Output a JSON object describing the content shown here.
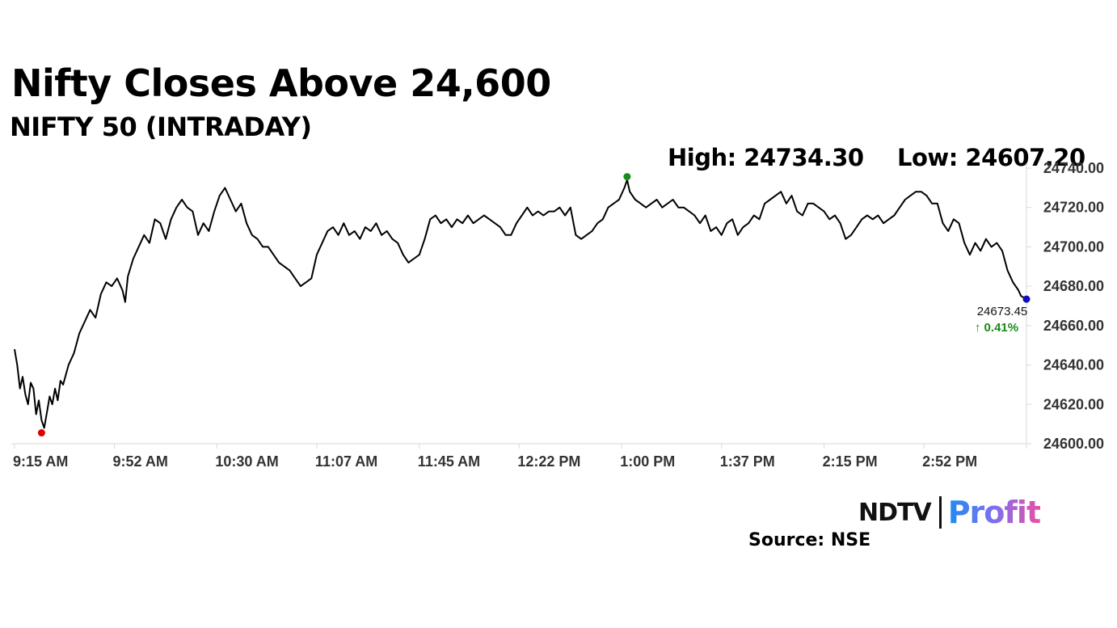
{
  "chart_data": {
    "type": "line",
    "title": "Nifty Closes Above 24,600",
    "subtitle": "NIFTY 50 (INTRADAY)",
    "high_label": "High: 24734.30",
    "low_label": "Low: 24607.20",
    "last_value_label": "24673.45",
    "change_label": "↑ 0.41%",
    "source": "Source: NSE",
    "brand": {
      "ndtv": "NDTV",
      "profit": "Profit"
    },
    "x_unit": "minutes after 9:15 AM",
    "x_tick_labels": [
      "9:15 AM",
      "9:52 AM",
      "10:30 AM",
      "11:07 AM",
      "11:45 AM",
      "12:22 PM",
      "1:00 PM",
      "1:37 PM",
      "2:15 PM",
      "2:52 PM"
    ],
    "x_tick_values": [
      0,
      37,
      75,
      112,
      150,
      187,
      225,
      262,
      300,
      337
    ],
    "xlim": [
      0,
      375
    ],
    "y_tick_labels": [
      "24740.00",
      "24720.00",
      "24700.00",
      "24680.00",
      "24660.00",
      "24640.00",
      "24620.00",
      "24600.00"
    ],
    "y_tick_values": [
      24740,
      24720,
      24700,
      24680,
      24660,
      24640,
      24620,
      24600
    ],
    "ylim": [
      24600,
      24740
    ],
    "grid": false,
    "series": [
      {
        "values_at": [
          [
            0,
            24648
          ],
          [
            1,
            24640
          ],
          [
            2,
            24628
          ],
          [
            3,
            24634
          ],
          [
            4,
            24625
          ],
          [
            5,
            24620
          ],
          [
            6,
            24631
          ],
          [
            7,
            24628
          ],
          [
            8,
            24615
          ],
          [
            9,
            24622
          ],
          [
            10,
            24612
          ],
          [
            11,
            24608
          ],
          [
            12,
            24616
          ],
          [
            13,
            24624
          ],
          [
            14,
            24620
          ],
          [
            15,
            24628
          ],
          [
            16,
            24622
          ],
          [
            17,
            24632
          ],
          [
            18,
            24630
          ],
          [
            20,
            24640
          ],
          [
            22,
            24646
          ],
          [
            24,
            24656
          ],
          [
            26,
            24662
          ],
          [
            28,
            24668
          ],
          [
            30,
            24664
          ],
          [
            32,
            24676
          ],
          [
            34,
            24682
          ],
          [
            36,
            24680
          ],
          [
            38,
            24684
          ],
          [
            40,
            24678
          ],
          [
            41,
            24672
          ],
          [
            42,
            24685
          ],
          [
            44,
            24694
          ],
          [
            46,
            24700
          ],
          [
            48,
            24706
          ],
          [
            50,
            24702
          ],
          [
            52,
            24714
          ],
          [
            54,
            24712
          ],
          [
            56,
            24704
          ],
          [
            58,
            24714
          ],
          [
            60,
            24720
          ],
          [
            62,
            24724
          ],
          [
            64,
            24720
          ],
          [
            66,
            24718
          ],
          [
            68,
            24706
          ],
          [
            70,
            24712
          ],
          [
            72,
            24708
          ],
          [
            74,
            24718
          ],
          [
            76,
            24726
          ],
          [
            78,
            24730
          ],
          [
            80,
            24724
          ],
          [
            82,
            24718
          ],
          [
            84,
            24722
          ],
          [
            86,
            24712
          ],
          [
            88,
            24706
          ],
          [
            90,
            24704
          ],
          [
            92,
            24700
          ],
          [
            94,
            24700
          ],
          [
            96,
            24696
          ],
          [
            98,
            24692
          ],
          [
            100,
            24690
          ],
          [
            102,
            24688
          ],
          [
            104,
            24684
          ],
          [
            106,
            24680
          ],
          [
            108,
            24682
          ],
          [
            110,
            24684
          ],
          [
            112,
            24696
          ],
          [
            114,
            24702
          ],
          [
            116,
            24708
          ],
          [
            118,
            24710
          ],
          [
            120,
            24706
          ],
          [
            122,
            24712
          ],
          [
            124,
            24706
          ],
          [
            126,
            24708
          ],
          [
            128,
            24704
          ],
          [
            130,
            24710
          ],
          [
            132,
            24708
          ],
          [
            134,
            24712
          ],
          [
            136,
            24706
          ],
          [
            138,
            24708
          ],
          [
            140,
            24704
          ],
          [
            142,
            24702
          ],
          [
            144,
            24696
          ],
          [
            146,
            24692
          ],
          [
            148,
            24694
          ],
          [
            150,
            24696
          ],
          [
            152,
            24704
          ],
          [
            154,
            24714
          ],
          [
            156,
            24716
          ],
          [
            158,
            24712
          ],
          [
            160,
            24714
          ],
          [
            162,
            24710
          ],
          [
            164,
            24714
          ],
          [
            166,
            24712
          ],
          [
            168,
            24716
          ],
          [
            170,
            24712
          ],
          [
            172,
            24714
          ],
          [
            174,
            24716
          ],
          [
            176,
            24714
          ],
          [
            178,
            24712
          ],
          [
            180,
            24710
          ],
          [
            182,
            24706
          ],
          [
            184,
            24706
          ],
          [
            186,
            24712
          ],
          [
            188,
            24716
          ],
          [
            190,
            24720
          ],
          [
            192,
            24716
          ],
          [
            194,
            24718
          ],
          [
            196,
            24716
          ],
          [
            198,
            24718
          ],
          [
            200,
            24718
          ],
          [
            202,
            24720
          ],
          [
            204,
            24716
          ],
          [
            206,
            24720
          ],
          [
            208,
            24706
          ],
          [
            210,
            24704
          ],
          [
            212,
            24706
          ],
          [
            214,
            24708
          ],
          [
            216,
            24712
          ],
          [
            218,
            24714
          ],
          [
            220,
            24720
          ],
          [
            222,
            24722
          ],
          [
            224,
            24724
          ],
          [
            226,
            24730
          ],
          [
            227,
            24734
          ],
          [
            228,
            24728
          ],
          [
            230,
            24724
          ],
          [
            232,
            24722
          ],
          [
            234,
            24720
          ],
          [
            236,
            24722
          ],
          [
            238,
            24724
          ],
          [
            240,
            24720
          ],
          [
            242,
            24722
          ],
          [
            244,
            24724
          ],
          [
            246,
            24720
          ],
          [
            248,
            24720
          ],
          [
            250,
            24718
          ],
          [
            252,
            24716
          ],
          [
            254,
            24712
          ],
          [
            256,
            24716
          ],
          [
            258,
            24708
          ],
          [
            260,
            24710
          ],
          [
            262,
            24706
          ],
          [
            264,
            24712
          ],
          [
            266,
            24714
          ],
          [
            268,
            24706
          ],
          [
            270,
            24710
          ],
          [
            272,
            24712
          ],
          [
            274,
            24716
          ],
          [
            276,
            24714
          ],
          [
            278,
            24722
          ],
          [
            280,
            24724
          ],
          [
            282,
            24726
          ],
          [
            284,
            24728
          ],
          [
            286,
            24722
          ],
          [
            288,
            24726
          ],
          [
            290,
            24718
          ],
          [
            292,
            24716
          ],
          [
            294,
            24722
          ],
          [
            296,
            24722
          ],
          [
            298,
            24720
          ],
          [
            300,
            24718
          ],
          [
            302,
            24714
          ],
          [
            304,
            24716
          ],
          [
            306,
            24712
          ],
          [
            308,
            24704
          ],
          [
            310,
            24706
          ],
          [
            312,
            24710
          ],
          [
            314,
            24714
          ],
          [
            316,
            24716
          ],
          [
            318,
            24714
          ],
          [
            320,
            24716
          ],
          [
            322,
            24712
          ],
          [
            324,
            24714
          ],
          [
            326,
            24716
          ],
          [
            328,
            24720
          ],
          [
            330,
            24724
          ],
          [
            332,
            24726
          ],
          [
            334,
            24728
          ],
          [
            336,
            24728
          ],
          [
            338,
            24726
          ],
          [
            340,
            24722
          ],
          [
            342,
            24722
          ],
          [
            344,
            24712
          ],
          [
            346,
            24708
          ],
          [
            348,
            24714
          ],
          [
            350,
            24712
          ],
          [
            352,
            24702
          ],
          [
            354,
            24696
          ],
          [
            356,
            24702
          ],
          [
            358,
            24698
          ],
          [
            360,
            24704
          ],
          [
            362,
            24700
          ],
          [
            364,
            24702
          ],
          [
            366,
            24698
          ],
          [
            368,
            24688
          ],
          [
            370,
            24682
          ],
          [
            372,
            24678
          ],
          [
            373,
            24675
          ],
          [
            375,
            24673.45
          ]
        ]
      }
    ],
    "markers": {
      "low": {
        "x": 10,
        "y": 24608,
        "color": "#e00000"
      },
      "high": {
        "x": 227,
        "y": 24734,
        "color": "#1a8a1a"
      },
      "last": {
        "x": 375,
        "y": 24673.45,
        "color": "#1010c0"
      }
    },
    "colors": {
      "line": "#000000",
      "change_up": "#1a8a1a",
      "axis": "#d9d9d9",
      "tick_text": "#333333"
    }
  }
}
